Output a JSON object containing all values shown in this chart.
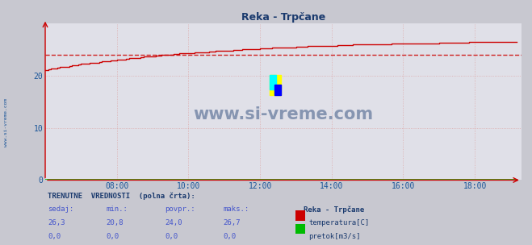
{
  "title": "Reka - Trpčane",
  "bg_color": "#c8c8d0",
  "plot_bg_color": "#e0e0e8",
  "grid_color": "#ddaaaa",
  "x_ticks": [
    "08:00",
    "10:00",
    "12:00",
    "14:00",
    "16:00",
    "18:00"
  ],
  "x_tick_hours": [
    8,
    10,
    12,
    14,
    16,
    18
  ],
  "ylim": [
    0,
    30
  ],
  "yticks": [
    0,
    10,
    20
  ],
  "temp_color": "#cc0000",
  "flow_color": "#00bb00",
  "avg_value": 24.0,
  "temp_min": 20.8,
  "temp_max": 26.7,
  "temp_current": 26.3,
  "temp_avg": 24.0,
  "flow_current": 0.0,
  "flow_min": 0.0,
  "flow_avg": 0.0,
  "flow_max": 0.0,
  "watermark_text": "www.si-vreme.com",
  "watermark_color": "#1a3a6e",
  "label_color": "#1a5599",
  "axis_color": "#cc0000",
  "title_color": "#1a3a6e",
  "footer_header": "TRENUTNE  VREDNOSTI  (polna črta):",
  "footer_cols": [
    "sedaj:",
    "min.:",
    "povpr.:",
    "maks.:"
  ],
  "footer_station": "Reka - Trpčane",
  "footer_temp_vals": [
    "26,3",
    "20,8",
    "24,0",
    "26,7"
  ],
  "footer_flow_vals": [
    "0,0",
    "0,0",
    "0,0",
    "0,0"
  ],
  "footer_temp_label": "temperatura[C]",
  "footer_flow_label": "pretok[m3/s]",
  "left_label": "www.si-vreme.com"
}
